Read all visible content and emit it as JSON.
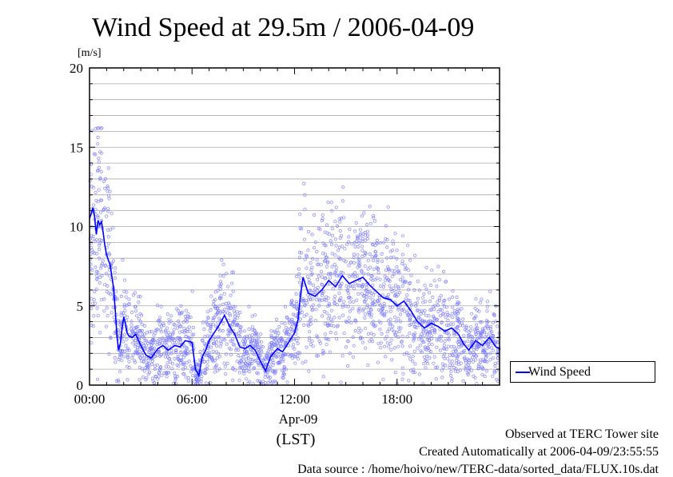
{
  "chart_data": {
    "type": "line",
    "title": "Wind Speed at 29.5m / 2006-04-09",
    "ylabel": "[m/s]",
    "xlabel": "(LST)",
    "date_label": "Apr-09",
    "ylim": [
      0,
      20
    ],
    "y_ticks": [
      "0",
      "5",
      "10",
      "15",
      "20"
    ],
    "xlim_hours": [
      0,
      24
    ],
    "x_ticks": [
      "00:00",
      "06:00",
      "12:00",
      "18:00"
    ],
    "grid": true,
    "legend_position": "right",
    "series": [
      {
        "name": "Wind Speed",
        "style": "line with scattered raw points",
        "line_color": "#0000ff",
        "point_color": "#7b7bff",
        "x_hours": [
          0.0,
          0.1,
          0.2,
          0.3,
          0.4,
          0.5,
          0.6,
          0.7,
          0.8,
          0.9,
          1.0,
          1.1,
          1.2,
          1.3,
          1.4,
          1.5,
          1.6,
          1.7,
          1.8,
          1.9,
          2.0,
          2.1,
          2.2,
          2.3,
          2.5,
          2.7,
          3.0,
          3.3,
          3.6,
          4.0,
          4.3,
          4.6,
          5.0,
          5.3,
          5.6,
          6.0,
          6.2,
          6.4,
          6.6,
          6.8,
          7.0,
          7.3,
          7.6,
          7.9,
          8.2,
          8.5,
          8.8,
          9.1,
          9.4,
          9.7,
          10.0,
          10.3,
          10.6,
          11.0,
          11.3,
          11.6,
          12.0,
          12.2,
          12.35,
          12.5,
          12.8,
          13.2,
          13.6,
          14.0,
          14.4,
          14.8,
          15.2,
          15.6,
          16.0,
          16.4,
          16.8,
          17.2,
          17.6,
          18.0,
          18.4,
          18.8,
          19.2,
          19.6,
          20.0,
          20.4,
          20.8,
          21.2,
          21.6,
          21.9,
          22.2,
          22.6,
          23.0,
          23.4,
          23.8,
          24.0
        ],
        "values": [
          10.5,
          10.8,
          11.2,
          10.6,
          9.5,
          10.4,
          10.1,
          10.3,
          9.6,
          8.8,
          8.2,
          7.9,
          7.6,
          6.9,
          6.2,
          4.8,
          3.2,
          2.2,
          2.6,
          3.5,
          4.3,
          3.9,
          3.3,
          3.1,
          3.0,
          3.2,
          2.5,
          1.9,
          1.7,
          2.3,
          2.5,
          2.2,
          2.5,
          2.4,
          2.8,
          2.7,
          1.0,
          0.6,
          1.8,
          2.2,
          2.8,
          3.3,
          3.8,
          4.4,
          3.7,
          3.2,
          2.4,
          2.3,
          2.5,
          2.2,
          1.5,
          0.9,
          1.8,
          2.3,
          2.1,
          2.6,
          3.3,
          4.1,
          5.7,
          6.8,
          5.8,
          5.6,
          6.0,
          6.6,
          6.2,
          6.9,
          6.4,
          6.6,
          6.8,
          6.3,
          5.9,
          5.5,
          5.4,
          5.0,
          5.3,
          4.7,
          4.0,
          3.6,
          3.9,
          3.7,
          3.4,
          3.6,
          3.2,
          2.6,
          2.2,
          2.8,
          2.5,
          3.0,
          2.4,
          2.3
        ]
      }
    ]
  },
  "legend": {
    "label": "Wind Speed"
  },
  "footer": {
    "line1": "Observed at TERC Tower site",
    "line2": "Created Automatically at 2006-04-09/23:55:55",
    "line3": "Data source : /home/hoivo/new/TERC-data/sorted_data/FLUX.10s.dat"
  },
  "colors": {
    "line": "#0000ff",
    "points": "#7b7bff",
    "grid": "#a9a9a9",
    "axis": "#000000"
  }
}
